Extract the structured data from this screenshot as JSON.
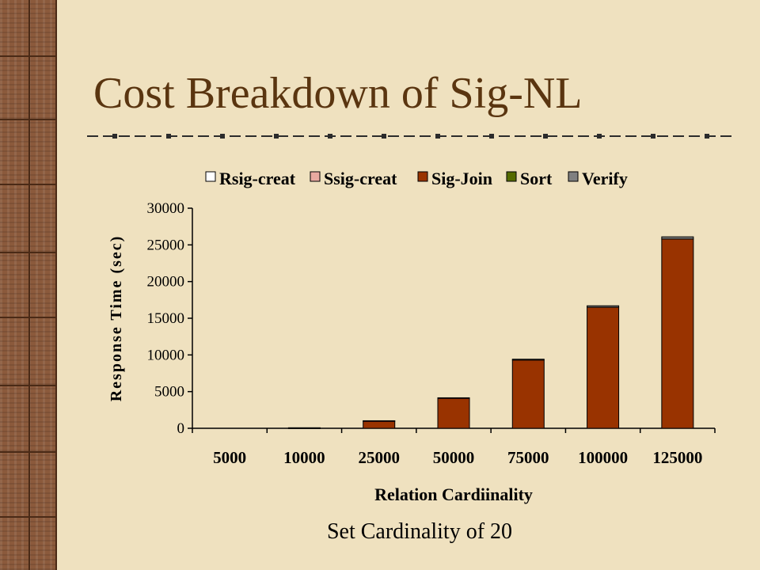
{
  "slide": {
    "title": "Cost Breakdown of Sig-NL",
    "caption": "Set Cardinality of 20"
  },
  "colors": {
    "background": "#efe1bf",
    "title": "#5a3510",
    "strip": "#8b5a3c"
  },
  "chart_data": {
    "type": "bar",
    "stacked": true,
    "categories": [
      "5000",
      "10000",
      "25000",
      "50000",
      "75000",
      "100000",
      "125000"
    ],
    "series": [
      {
        "name": "Rsig-creat",
        "color": "#ffffff",
        "values": [
          0,
          0,
          0,
          0,
          0,
          0,
          0
        ]
      },
      {
        "name": "Ssig-creat",
        "color": "#e8a9a0",
        "values": [
          0,
          0,
          0,
          0,
          0,
          0,
          0
        ]
      },
      {
        "name": "Sig-Join",
        "color": "#993300",
        "values": [
          0,
          60,
          1000,
          4100,
          9300,
          16500,
          25800
        ]
      },
      {
        "name": "Sort",
        "color": "#556b00",
        "values": [
          0,
          0,
          0,
          0,
          0,
          0,
          0
        ]
      },
      {
        "name": "Verify",
        "color": "#808080",
        "values": [
          0,
          10,
          30,
          60,
          120,
          200,
          300
        ]
      }
    ],
    "xlabel": "Relation Cardiinality",
    "ylabel": "Response Time (sec)",
    "ylim": [
      0,
      30000
    ],
    "yticks": [
      "0",
      "5000",
      "10000",
      "15000",
      "20000",
      "25000",
      "30000"
    ],
    "grid": false,
    "legend_position": "top"
  }
}
